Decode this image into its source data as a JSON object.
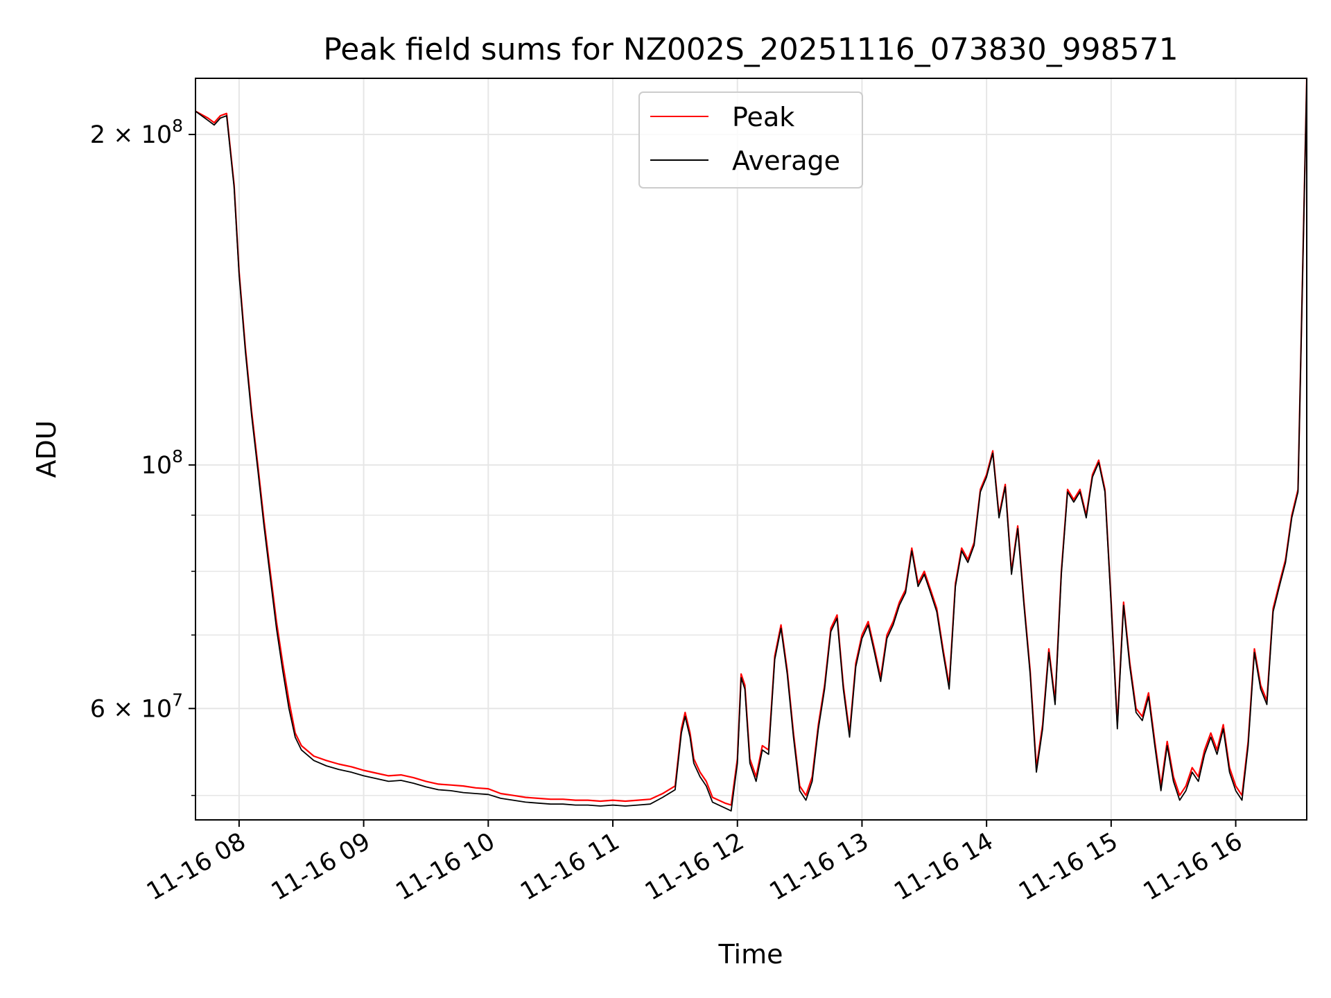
{
  "chart_data": {
    "type": "line",
    "title": "Peak field sums for NZ002S_20251116_073830_998571",
    "xlabel": "Time",
    "ylabel": "ADU",
    "yscale": "log",
    "ylim": [
      47500000,
      225000000
    ],
    "xlim": [
      7.65,
      16.57
    ],
    "grid": true,
    "legend": {
      "placement": "upper center",
      "entries": [
        "Peak",
        "Average"
      ]
    },
    "x_ticks": [
      {
        "value": 8,
        "label": "11-16 08"
      },
      {
        "value": 9,
        "label": "11-16 09"
      },
      {
        "value": 10,
        "label": "11-16 10"
      },
      {
        "value": 11,
        "label": "11-16 11"
      },
      {
        "value": 12,
        "label": "11-16 12"
      },
      {
        "value": 13,
        "label": "11-16 13"
      },
      {
        "value": 14,
        "label": "11-16 14"
      },
      {
        "value": 15,
        "label": "11-16 15"
      },
      {
        "value": 16,
        "label": "11-16 16"
      }
    ],
    "y_major_ticks": [
      {
        "value": 200000000,
        "mantissa": "2",
        "exp": "8"
      },
      {
        "value": 100000000,
        "mantissa": "",
        "exp": "8"
      },
      {
        "value": 60000000,
        "mantissa": "6",
        "exp": "7"
      }
    ],
    "y_minor_ticks": [
      50000000,
      70000000,
      80000000,
      90000000
    ],
    "series": [
      {
        "name": "Peak",
        "color": "#ff0000",
        "points": [
          [
            7.65,
            210
          ],
          [
            7.75,
            207
          ],
          [
            7.8,
            205
          ],
          [
            7.85,
            208
          ],
          [
            7.9,
            209
          ],
          [
            7.96,
            180
          ],
          [
            8.0,
            150
          ],
          [
            8.05,
            128
          ],
          [
            8.1,
            112
          ],
          [
            8.15,
            100
          ],
          [
            8.2,
            89
          ],
          [
            8.25,
            80
          ],
          [
            8.3,
            72
          ],
          [
            8.35,
            66
          ],
          [
            8.4,
            61
          ],
          [
            8.45,
            57
          ],
          [
            8.5,
            55.5
          ],
          [
            8.6,
            54.3
          ],
          [
            8.7,
            53.8
          ],
          [
            8.8,
            53.4
          ],
          [
            8.9,
            53.1
          ],
          [
            9.0,
            52.7
          ],
          [
            9.1,
            52.4
          ],
          [
            9.2,
            52.1
          ],
          [
            9.3,
            52.2
          ],
          [
            9.4,
            51.9
          ],
          [
            9.5,
            51.5
          ],
          [
            9.6,
            51.2
          ],
          [
            9.7,
            51.1
          ],
          [
            9.8,
            51.0
          ],
          [
            9.9,
            50.8
          ],
          [
            10.0,
            50.7
          ],
          [
            10.1,
            50.2
          ],
          [
            10.2,
            50.0
          ],
          [
            10.3,
            49.8
          ],
          [
            10.4,
            49.7
          ],
          [
            10.5,
            49.6
          ],
          [
            10.6,
            49.6
          ],
          [
            10.7,
            49.5
          ],
          [
            10.8,
            49.5
          ],
          [
            10.9,
            49.4
          ],
          [
            11.0,
            49.5
          ],
          [
            11.1,
            49.4
          ],
          [
            11.2,
            49.5
          ],
          [
            11.3,
            49.6
          ],
          [
            11.4,
            50.2
          ],
          [
            11.5,
            51.0
          ],
          [
            11.55,
            57.5
          ],
          [
            11.58,
            59.5
          ],
          [
            11.62,
            57.0
          ],
          [
            11.65,
            54.0
          ],
          [
            11.7,
            52.5
          ],
          [
            11.75,
            51.5
          ],
          [
            11.8,
            49.8
          ],
          [
            11.9,
            49.2
          ],
          [
            11.95,
            49.0
          ],
          [
            12.0,
            54.0
          ],
          [
            12.03,
            64.5
          ],
          [
            12.06,
            63.0
          ],
          [
            12.1,
            54.0
          ],
          [
            12.15,
            52.0
          ],
          [
            12.2,
            55.5
          ],
          [
            12.25,
            55.0
          ],
          [
            12.3,
            67.0
          ],
          [
            12.35,
            71.5
          ],
          [
            12.4,
            65.0
          ],
          [
            12.45,
            57.0
          ],
          [
            12.5,
            51.0
          ],
          [
            12.55,
            50.0
          ],
          [
            12.6,
            52.0
          ],
          [
            12.65,
            58.0
          ],
          [
            12.7,
            63.0
          ],
          [
            12.75,
            71.0
          ],
          [
            12.8,
            73.0
          ],
          [
            12.85,
            63.0
          ],
          [
            12.9,
            57.0
          ],
          [
            12.95,
            66.0
          ],
          [
            13.0,
            70.0
          ],
          [
            13.05,
            72.0
          ],
          [
            13.1,
            68.0
          ],
          [
            13.15,
            64.0
          ],
          [
            13.2,
            70.0
          ],
          [
            13.25,
            72.0
          ],
          [
            13.3,
            75.0
          ],
          [
            13.35,
            77.0
          ],
          [
            13.4,
            84.0
          ],
          [
            13.45,
            78.0
          ],
          [
            13.5,
            80.0
          ],
          [
            13.55,
            77.0
          ],
          [
            13.6,
            74.0
          ],
          [
            13.65,
            68.0
          ],
          [
            13.7,
            63.0
          ],
          [
            13.75,
            78.0
          ],
          [
            13.8,
            84.0
          ],
          [
            13.85,
            82.0
          ],
          [
            13.9,
            85.0
          ],
          [
            13.95,
            95.0
          ],
          [
            14.0,
            98.0
          ],
          [
            14.05,
            103.0
          ],
          [
            14.1,
            90.0
          ],
          [
            14.15,
            96.0
          ],
          [
            14.2,
            80.0
          ],
          [
            14.25,
            88.0
          ],
          [
            14.3,
            75.0
          ],
          [
            14.35,
            65.0
          ],
          [
            14.4,
            53.0
          ],
          [
            14.45,
            58.0
          ],
          [
            14.5,
            68.0
          ],
          [
            14.55,
            61.0
          ],
          [
            14.6,
            80.0
          ],
          [
            14.65,
            95.0
          ],
          [
            14.7,
            93.0
          ],
          [
            14.75,
            95.0
          ],
          [
            14.8,
            90.0
          ],
          [
            14.85,
            98.0
          ],
          [
            14.9,
            101.0
          ],
          [
            14.95,
            95.0
          ],
          [
            15.0,
            75.0
          ],
          [
            15.05,
            58.0
          ],
          [
            15.1,
            75.0
          ],
          [
            15.15,
            66.0
          ],
          [
            15.2,
            60.0
          ],
          [
            15.25,
            59.0
          ],
          [
            15.3,
            62.0
          ],
          [
            15.35,
            56.0
          ],
          [
            15.4,
            51.0
          ],
          [
            15.45,
            56.0
          ],
          [
            15.5,
            52.0
          ],
          [
            15.55,
            50.0
          ],
          [
            15.6,
            51.0
          ],
          [
            15.65,
            53.0
          ],
          [
            15.7,
            52.0
          ],
          [
            15.75,
            55.0
          ],
          [
            15.8,
            57.0
          ],
          [
            15.85,
            55.0
          ],
          [
            15.9,
            58.0
          ],
          [
            15.95,
            53.0
          ],
          [
            16.0,
            51.0
          ],
          [
            16.05,
            50.0
          ],
          [
            16.1,
            56.0
          ],
          [
            16.15,
            68.0
          ],
          [
            16.2,
            63.0
          ],
          [
            16.25,
            61.0
          ],
          [
            16.3,
            74.0
          ],
          [
            16.35,
            78.0
          ],
          [
            16.4,
            82.0
          ],
          [
            16.45,
            90.0
          ],
          [
            16.5,
            95.0
          ],
          [
            16.57,
            225.0
          ]
        ]
      },
      {
        "name": "Average",
        "color": "#000000",
        "points": [
          [
            7.65,
            210
          ],
          [
            7.75,
            206
          ],
          [
            7.8,
            204
          ],
          [
            7.85,
            207
          ],
          [
            7.9,
            208
          ],
          [
            7.96,
            179
          ],
          [
            8.0,
            149
          ],
          [
            8.05,
            127
          ],
          [
            8.1,
            111
          ],
          [
            8.15,
            99
          ],
          [
            8.2,
            88
          ],
          [
            8.25,
            79
          ],
          [
            8.3,
            71
          ],
          [
            8.35,
            65
          ],
          [
            8.4,
            60
          ],
          [
            8.45,
            56.5
          ],
          [
            8.5,
            55.0
          ],
          [
            8.6,
            53.8
          ],
          [
            8.7,
            53.2
          ],
          [
            8.8,
            52.8
          ],
          [
            8.9,
            52.5
          ],
          [
            9.0,
            52.1
          ],
          [
            9.1,
            51.8
          ],
          [
            9.2,
            51.5
          ],
          [
            9.3,
            51.6
          ],
          [
            9.4,
            51.3
          ],
          [
            9.5,
            50.9
          ],
          [
            9.6,
            50.6
          ],
          [
            9.7,
            50.5
          ],
          [
            9.8,
            50.3
          ],
          [
            9.9,
            50.2
          ],
          [
            10.0,
            50.1
          ],
          [
            10.1,
            49.7
          ],
          [
            10.2,
            49.5
          ],
          [
            10.3,
            49.3
          ],
          [
            10.4,
            49.2
          ],
          [
            10.5,
            49.1
          ],
          [
            10.6,
            49.1
          ],
          [
            10.7,
            49.0
          ],
          [
            10.8,
            49.0
          ],
          [
            10.9,
            48.9
          ],
          [
            11.0,
            49.0
          ],
          [
            11.1,
            48.9
          ],
          [
            11.2,
            49.0
          ],
          [
            11.3,
            49.1
          ],
          [
            11.4,
            49.8
          ],
          [
            11.5,
            50.6
          ],
          [
            11.55,
            57.0
          ],
          [
            11.58,
            59.0
          ],
          [
            11.62,
            56.5
          ],
          [
            11.65,
            53.5
          ],
          [
            11.7,
            52.0
          ],
          [
            11.75,
            51.0
          ],
          [
            11.8,
            49.3
          ],
          [
            11.9,
            48.7
          ],
          [
            11.95,
            48.4
          ],
          [
            12.0,
            53.5
          ],
          [
            12.03,
            64.0
          ],
          [
            12.06,
            62.5
          ],
          [
            12.1,
            53.5
          ],
          [
            12.15,
            51.5
          ],
          [
            12.2,
            55.0
          ],
          [
            12.25,
            54.5
          ],
          [
            12.3,
            66.5
          ],
          [
            12.35,
            71.0
          ],
          [
            12.4,
            64.5
          ],
          [
            12.45,
            56.5
          ],
          [
            12.5,
            50.5
          ],
          [
            12.55,
            49.5
          ],
          [
            12.6,
            51.5
          ],
          [
            12.65,
            57.5
          ],
          [
            12.7,
            62.5
          ],
          [
            12.75,
            70.5
          ],
          [
            12.8,
            72.5
          ],
          [
            12.85,
            62.5
          ],
          [
            12.9,
            56.5
          ],
          [
            12.95,
            65.5
          ],
          [
            13.0,
            69.5
          ],
          [
            13.05,
            71.5
          ],
          [
            13.1,
            67.5
          ],
          [
            13.15,
            63.5
          ],
          [
            13.2,
            69.5
          ],
          [
            13.25,
            71.5
          ],
          [
            13.3,
            74.5
          ],
          [
            13.35,
            76.5
          ],
          [
            13.4,
            83.5
          ],
          [
            13.45,
            77.5
          ],
          [
            13.5,
            79.5
          ],
          [
            13.55,
            76.5
          ],
          [
            13.6,
            73.5
          ],
          [
            13.65,
            67.5
          ],
          [
            13.7,
            62.5
          ],
          [
            13.75,
            77.5
          ],
          [
            13.8,
            83.5
          ],
          [
            13.85,
            81.5
          ],
          [
            13.9,
            84.5
          ],
          [
            13.95,
            94.5
          ],
          [
            14.0,
            97.5
          ],
          [
            14.05,
            102.5
          ],
          [
            14.1,
            89.5
          ],
          [
            14.15,
            95.5
          ],
          [
            14.2,
            79.5
          ],
          [
            14.25,
            87.5
          ],
          [
            14.3,
            74.5
          ],
          [
            14.35,
            64.5
          ],
          [
            14.4,
            52.5
          ],
          [
            14.45,
            57.5
          ],
          [
            14.5,
            67.5
          ],
          [
            14.55,
            60.5
          ],
          [
            14.6,
            79.5
          ],
          [
            14.65,
            94.5
          ],
          [
            14.7,
            92.5
          ],
          [
            14.75,
            94.5
          ],
          [
            14.8,
            89.5
          ],
          [
            14.85,
            97.5
          ],
          [
            14.9,
            100.5
          ],
          [
            14.95,
            94.5
          ],
          [
            15.0,
            74.5
          ],
          [
            15.05,
            57.5
          ],
          [
            15.1,
            74.5
          ],
          [
            15.15,
            65.5
          ],
          [
            15.2,
            59.5
          ],
          [
            15.25,
            58.5
          ],
          [
            15.3,
            61.5
          ],
          [
            15.35,
            55.5
          ],
          [
            15.4,
            50.5
          ],
          [
            15.45,
            55.5
          ],
          [
            15.5,
            51.5
          ],
          [
            15.55,
            49.5
          ],
          [
            15.6,
            50.5
          ],
          [
            15.65,
            52.5
          ],
          [
            15.7,
            51.5
          ],
          [
            15.75,
            54.5
          ],
          [
            15.8,
            56.5
          ],
          [
            15.85,
            54.5
          ],
          [
            15.9,
            57.5
          ],
          [
            15.95,
            52.5
          ],
          [
            16.0,
            50.5
          ],
          [
            16.05,
            49.5
          ],
          [
            16.1,
            55.5
          ],
          [
            16.15,
            67.5
          ],
          [
            16.2,
            62.5
          ],
          [
            16.25,
            60.5
          ],
          [
            16.3,
            73.5
          ],
          [
            16.35,
            77.5
          ],
          [
            16.4,
            81.5
          ],
          [
            16.45,
            89.5
          ],
          [
            16.5,
            94.5
          ],
          [
            16.57,
            224.0
          ]
        ]
      }
    ]
  }
}
